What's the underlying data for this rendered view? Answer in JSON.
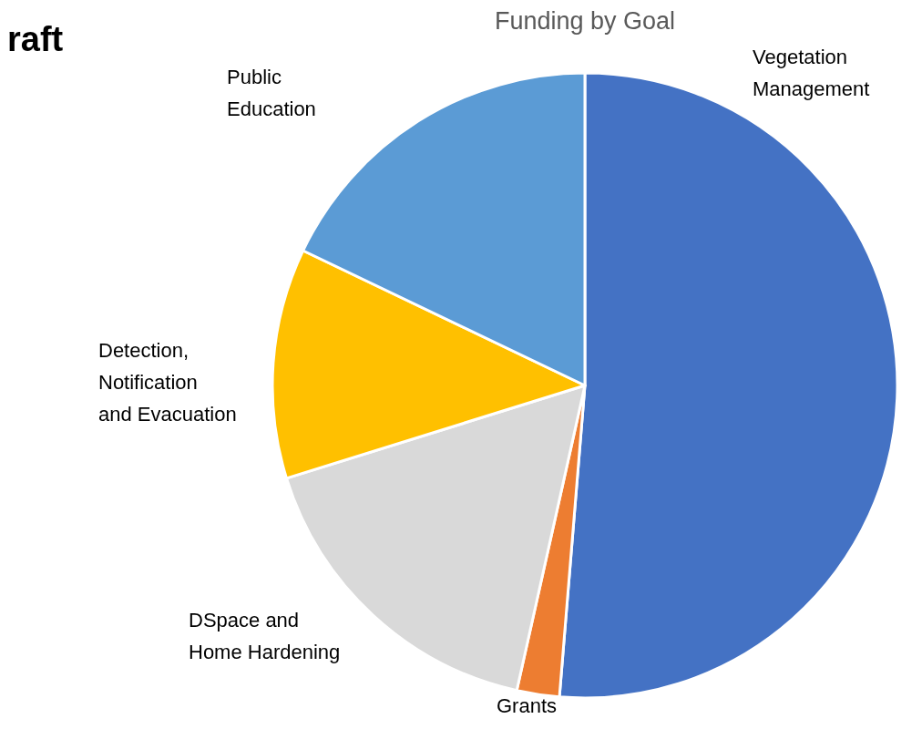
{
  "chart_data": {
    "type": "pie",
    "title": "Funding by Goal",
    "categories": [
      "Vegetation Management",
      "Grants",
      "DSpace and Home Hardening",
      "Detection, Notification and Evacuation",
      "Public Education"
    ],
    "values": [
      51.3,
      2.2,
      16.7,
      11.9,
      17.9
    ],
    "colors": [
      "#4472c4",
      "#ed7d31",
      "#d9d9d9",
      "#ffc000",
      "#5b9bd5"
    ],
    "annotations": [
      "raft"
    ]
  }
}
